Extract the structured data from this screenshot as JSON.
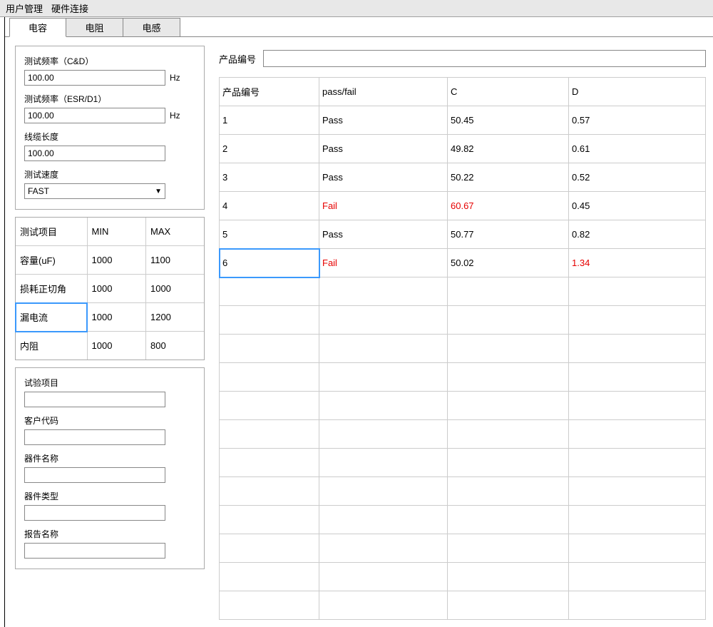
{
  "menubar": {
    "user_mgmt": "用户管理",
    "hw_connect": "硬件连接"
  },
  "tabs": {
    "capacitor": "电容",
    "resistor": "电阻",
    "inductor": "电感"
  },
  "settings": {
    "freq_cd_label": "测试频率（C&D）",
    "freq_cd_value": "100.00",
    "freq_cd_unit": "Hz",
    "freq_esr_label": "测试频率（ESR/D1）",
    "freq_esr_value": "100.00",
    "freq_esr_unit": "Hz",
    "cable_len_label": "线缆长度",
    "cable_len_value": "100.00",
    "speed_label": "测试速度",
    "speed_value": "FAST"
  },
  "limits": {
    "header_item": "测试项目",
    "header_min": "MIN",
    "header_max": "MAX",
    "rows": [
      {
        "item": "容量(uF)",
        "min": "1000",
        "max": "1100"
      },
      {
        "item": "损耗正切角",
        "min": "1000",
        "max": "1000"
      },
      {
        "item": "漏电流",
        "min": "1000",
        "max": "1200"
      },
      {
        "item": "内阻",
        "min": "1000",
        "max": "800"
      }
    ],
    "selected_row": 2,
    "selected_col": 0
  },
  "meta_fields": {
    "test_item": "试验项目",
    "customer_code": "客户代码",
    "device_name": "器件名称",
    "device_type": "器件类型",
    "report_name": "报告名称"
  },
  "product": {
    "label": "产品编号",
    "value": ""
  },
  "results": {
    "headers": {
      "id": "产品编号",
      "pf": "pass/fail",
      "c": "C",
      "d": "D"
    },
    "rows": [
      {
        "id": "1",
        "pf": "Pass",
        "c": "50.45",
        "d": "0.57",
        "fail": false,
        "d_fail": false
      },
      {
        "id": "2",
        "pf": "Pass",
        "c": "49.82",
        "d": "0.61",
        "fail": false,
        "d_fail": false
      },
      {
        "id": "3",
        "pf": "Pass",
        "c": "50.22",
        "d": "0.52",
        "fail": false,
        "d_fail": false
      },
      {
        "id": "4",
        "pf": "Fail",
        "c": "60.67",
        "d": "0.45",
        "fail": true,
        "d_fail": false
      },
      {
        "id": "5",
        "pf": "Pass",
        "c": "50.77",
        "d": "0.82",
        "fail": false,
        "d_fail": false
      },
      {
        "id": "6",
        "pf": "Fail",
        "c": "50.02",
        "d": "1.34",
        "fail": true,
        "d_fail": true
      }
    ],
    "empty_rows": 12,
    "selected_row": 5,
    "selected_col": 0
  },
  "colors": {
    "fail": "#e60000",
    "selection": "#3b99fc",
    "border": "#cccccc",
    "menubar_bg": "#e8e8e8"
  }
}
